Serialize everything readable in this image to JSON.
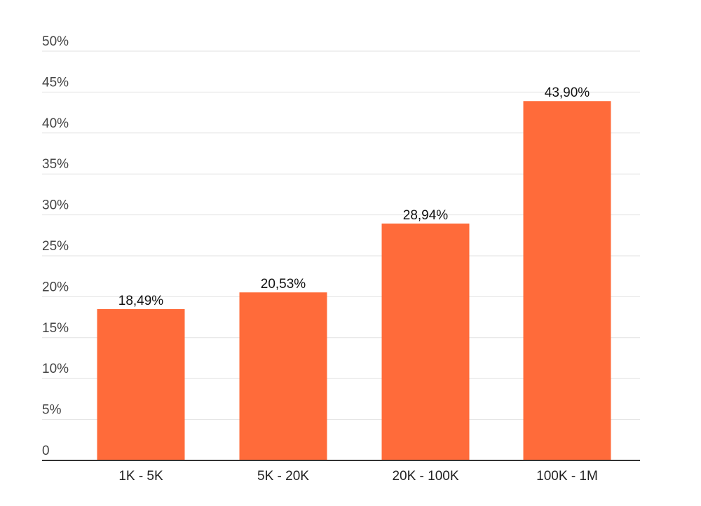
{
  "chart_data": {
    "type": "bar",
    "title": "",
    "xlabel": "",
    "ylabel": "",
    "categories": [
      "1K - 5K",
      "5K - 20K",
      "20K - 100K",
      "100K - 1M"
    ],
    "values": [
      18.49,
      20.53,
      28.94,
      43.9
    ],
    "data_labels": [
      "18,49%",
      "20,53%",
      "28,94%",
      "43,90%"
    ],
    "ylim": [
      0,
      50
    ],
    "yticks": [
      0,
      5,
      10,
      15,
      20,
      25,
      30,
      35,
      40,
      45,
      50
    ],
    "ytick_labels": [
      "0",
      "5%",
      "10%",
      "15%",
      "20%",
      "25%",
      "30%",
      "35%",
      "40%",
      "45%",
      "50%"
    ],
    "grid": true,
    "legend": "none",
    "colors": {
      "bar": "#ff6b3a",
      "grid": "#e2e2e2",
      "axis": "#333333"
    }
  }
}
